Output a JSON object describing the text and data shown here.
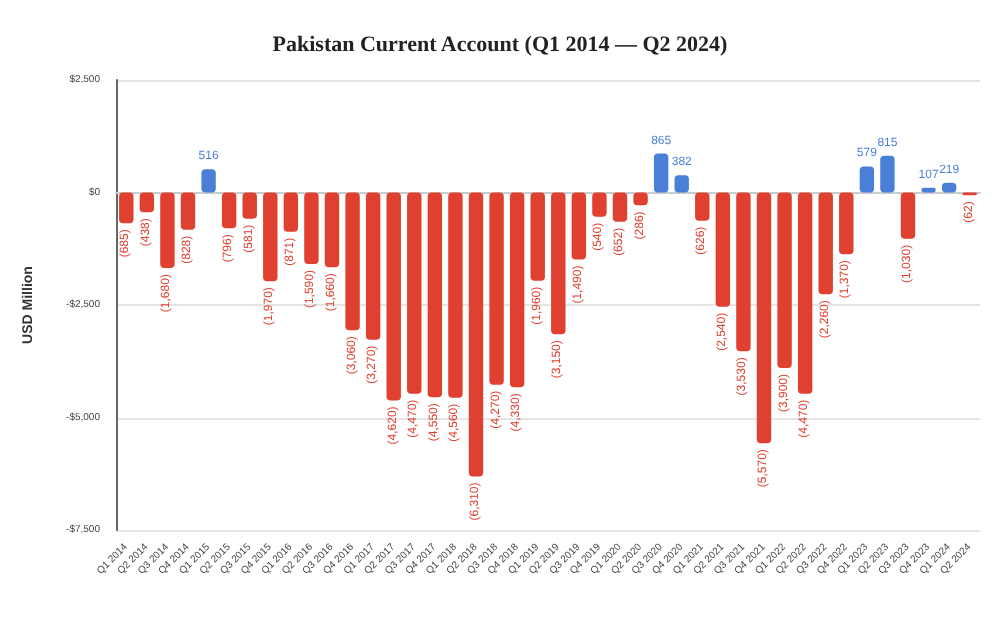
{
  "chart_data": {
    "type": "bar",
    "title": "Pakistan Current Account (Q1 2014 — Q2 2024)",
    "ylabel": "USD Million",
    "categories": [
      "Q1 2014",
      "Q2 2014",
      "Q3 2014",
      "Q4 2014",
      "Q1 2015",
      "Q2 2015",
      "Q3 2015",
      "Q4 2015",
      "Q1 2016",
      "Q2 2016",
      "Q3 2016",
      "Q4 2016",
      "Q1 2017",
      "Q2 2017",
      "Q3 2017",
      "Q4 2017",
      "Q1 2018",
      "Q2 2018",
      "Q3 2018",
      "Q4 2018",
      "Q1 2019",
      "Q2 2019",
      "Q3 2019",
      "Q4 2019",
      "Q1 2020",
      "Q2 2020",
      "Q3 2020",
      "Q4 2020",
      "Q1 2021",
      "Q2 2021",
      "Q3 2021",
      "Q4 2021",
      "Q1 2022",
      "Q2 2022",
      "Q3 2022",
      "Q4 2022",
      "Q1 2023",
      "Q2 2023",
      "Q3 2023",
      "Q4 2023",
      "Q1 2024",
      "Q2 2024"
    ],
    "values": [
      -685,
      -438,
      -1680,
      -828,
      516,
      -796,
      -581,
      -1970,
      -871,
      -1590,
      -1660,
      -3060,
      -3270,
      -4620,
      -4470,
      -4550,
      -4560,
      -6310,
      -4270,
      -4330,
      -1960,
      -3150,
      -1490,
      -540,
      -652,
      -286,
      865,
      382,
      -626,
      -2540,
      -3530,
      -5570,
      -3900,
      -4470,
      -2260,
      -1370,
      579,
      815,
      -1030,
      107,
      219,
      -62
    ],
    "value_labels": [
      "(685)",
      "(438)",
      "(1,680)",
      "(828)",
      "516",
      "(796)",
      "(581)",
      "(1,970)",
      "(871)",
      "(1,590)",
      "(1,660)",
      "(3,060)",
      "(3,270)",
      "(4,620)",
      "(4,470)",
      "(4,550)",
      "(4,560)",
      "(6,310)",
      "(4,270)",
      "(4,330)",
      "(1,960)",
      "(3,150)",
      "(1,490)",
      "(540)",
      "(652)",
      "(286)",
      "865",
      "382",
      "(626)",
      "(2,540)",
      "(3,530)",
      "(5,570)",
      "(3,900)",
      "(4,470)",
      "(2,260)",
      "(1,370)",
      "579",
      "815",
      "(1,030)",
      "107",
      "219",
      "(62)"
    ],
    "colors": [
      "#e0402f",
      "#e0402f",
      "#e0402f",
      "#e0402f",
      "#4a7fd8",
      "#e0402f",
      "#e0402f",
      "#e0402f",
      "#e0402f",
      "#e0402f",
      "#e0402f",
      "#e0402f",
      "#e0402f",
      "#e0402f",
      "#e0402f",
      "#e0402f",
      "#e0402f",
      "#e0402f",
      "#e0402f",
      "#e0402f",
      "#e0402f",
      "#e0402f",
      "#e0402f",
      "#e0402f",
      "#e0402f",
      "#e0402f",
      "#4a7fd8",
      "#4a7fd8",
      "#e0402f",
      "#e0402f",
      "#e0402f",
      "#e0402f",
      "#e0402f",
      "#e0402f",
      "#e0402f",
      "#e0402f",
      "#4a7fd8",
      "#4a7fd8",
      "#e0402f",
      "#4a7fd8",
      "#4a7fd8",
      "#e0402f"
    ],
    "ylim": [
      -7500,
      2500
    ],
    "yticks": [
      {
        "value": -7500,
        "label": "-$7,500"
      },
      {
        "value": -5000,
        "label": "-$5,000"
      },
      {
        "value": -2500,
        "label": "-$2,500"
      },
      {
        "value": 0,
        "label": "$0"
      },
      {
        "value": 2500,
        "label": "$2,500"
      }
    ],
    "grid": "y"
  }
}
